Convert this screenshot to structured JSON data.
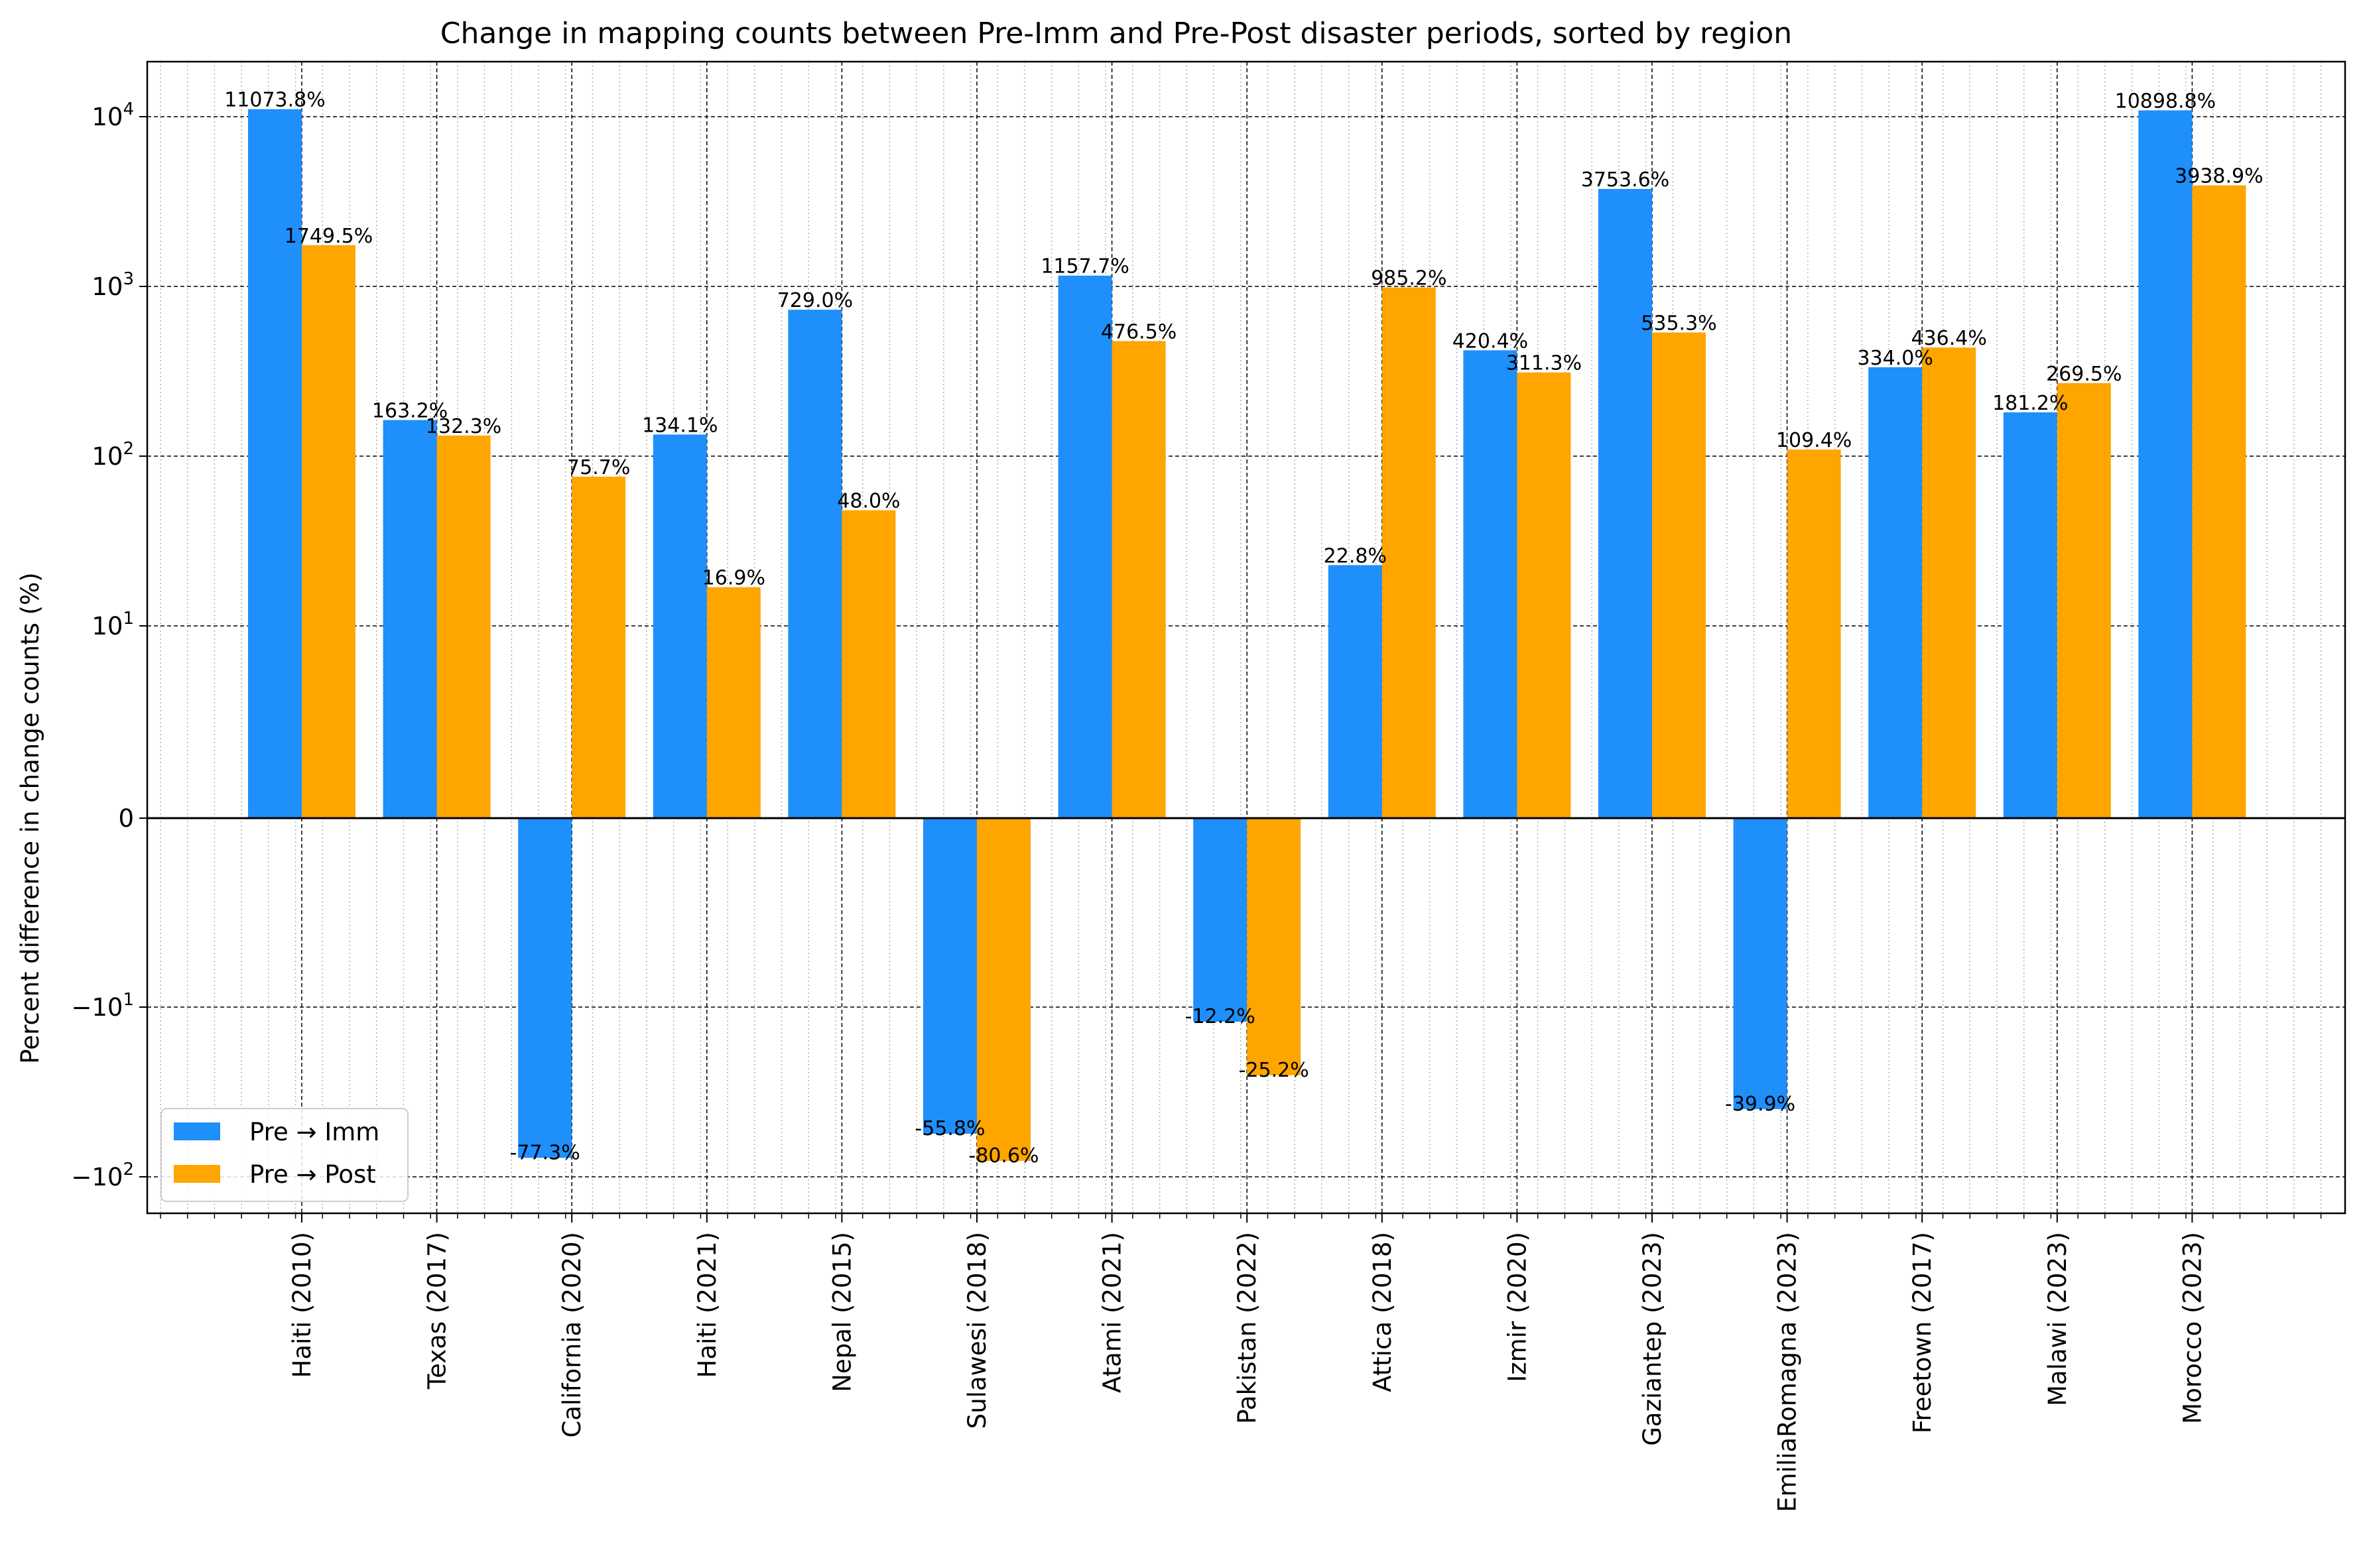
{
  "chart_data": {
    "type": "bar",
    "title": "Change in mapping counts between Pre-Imm and Pre-Post disaster periods, sorted by region",
    "xlabel": "",
    "ylabel": "Percent difference in change counts (%)",
    "yscale": "symlog",
    "ylim": [
      -150,
      21000
    ],
    "grid": true,
    "legend_position": "lower-left",
    "categories": [
      "Haiti (2010)",
      "Texas (2017)",
      "California (2020)",
      "Haiti (2021)",
      "Nepal (2015)",
      "Sulawesi (2018)",
      "Atami (2021)",
      "Pakistan (2022)",
      "Attica (2018)",
      "Izmir (2020)",
      "Gaziantep (2023)",
      "EmiliaRomagna (2023)",
      "Freetown (2017)",
      "Malawi (2023)",
      "Morocco (2023)"
    ],
    "series": [
      {
        "name": "Pre → Imm",
        "color": "#1f8ffb",
        "values": [
          11073.8,
          163.2,
          -77.3,
          134.1,
          729.0,
          -55.8,
          1157.7,
          -12.2,
          22.8,
          420.4,
          3753.6,
          -39.9,
          334.0,
          181.2,
          10898.8
        ],
        "labels": [
          "11073.8%",
          "163.2%",
          "-77.3%",
          "134.1%",
          "729.0%",
          "-55.8%",
          "1157.7%",
          "-12.2%",
          "22.8%",
          "420.4%",
          "3753.6%",
          "-39.9%",
          "334.0%",
          "181.2%",
          "10898.8%"
        ]
      },
      {
        "name": "Pre → Post",
        "color": "#ffa500",
        "values": [
          1749.5,
          132.3,
          75.7,
          16.9,
          48.0,
          -80.6,
          476.5,
          -25.2,
          985.2,
          311.3,
          535.3,
          109.4,
          436.4,
          269.5,
          3938.9
        ],
        "labels": [
          "1749.5%",
          "132.3%",
          "75.7%",
          "16.9%",
          "48.0%",
          "-80.6%",
          "476.5%",
          "-25.2%",
          "985.2%",
          "311.3%",
          "535.3%",
          "109.4%",
          "436.4%",
          "269.5%",
          "3938.9%"
        ]
      }
    ],
    "yticks": [
      {
        "value": 10000,
        "base": "10",
        "exp": "4"
      },
      {
        "value": 1000,
        "base": "10",
        "exp": "3"
      },
      {
        "value": 100,
        "base": "10",
        "exp": "2"
      },
      {
        "value": 10,
        "base": "10",
        "exp": "1"
      },
      {
        "value": 0,
        "base": "0",
        "exp": ""
      },
      {
        "value": -10,
        "base": "−10",
        "exp": "1"
      },
      {
        "value": -100,
        "base": "−10",
        "exp": "2"
      }
    ]
  }
}
